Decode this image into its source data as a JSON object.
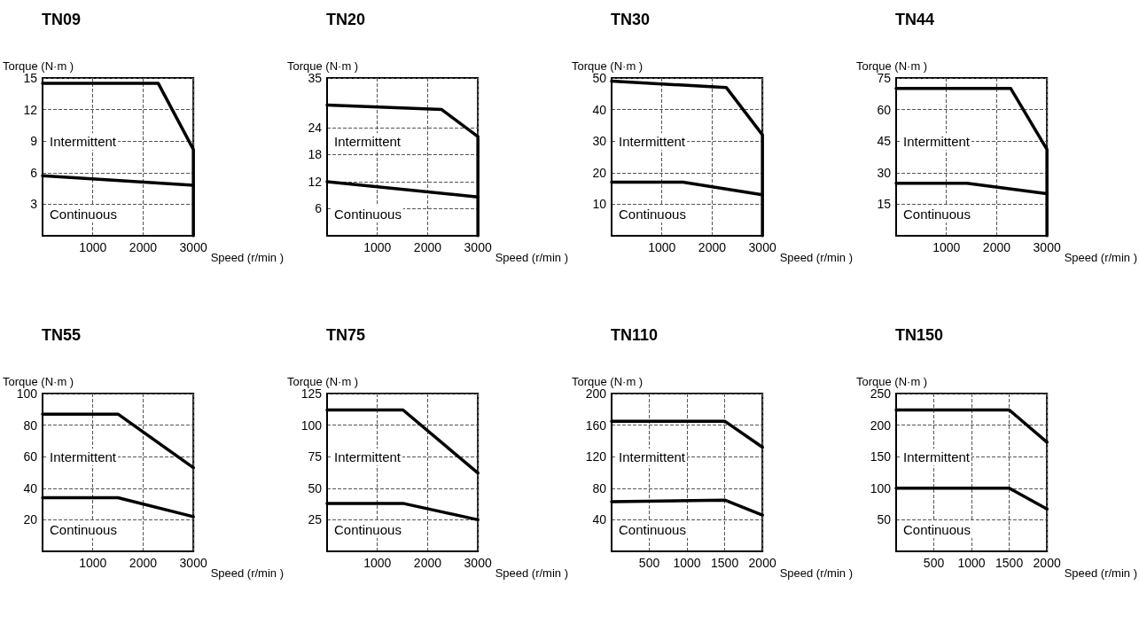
{
  "chart_data": [
    {
      "type": "line",
      "title": "TN09",
      "xlabel": "Speed (r/min )",
      "ylabel": "Torque (N·m )",
      "xlim": [
        0,
        3000
      ],
      "xticks": [
        1000,
        2000,
        3000
      ],
      "ylim": [
        0,
        15
      ],
      "yticks": [
        3,
        6,
        9,
        12,
        15
      ],
      "grid": true,
      "marker": "none",
      "line_style": "solid",
      "series": [
        {
          "color": "#000000",
          "x": [
            0,
            2300,
            3000,
            3000
          ],
          "values": [
            14.5,
            14.5,
            8.2,
            0
          ]
        },
        {
          "color": "#000000",
          "x": [
            0,
            3000
          ],
          "values": [
            5.7,
            4.8
          ]
        }
      ],
      "annotations": [
        "Intermittent",
        "Continuous"
      ]
    },
    {
      "type": "line",
      "title": "TN20",
      "xlabel": "Speed (r/min )",
      "ylabel": "Torque (N·m )",
      "xlim": [
        0,
        3000
      ],
      "xticks": [
        1000,
        2000,
        3000
      ],
      "ylim": [
        0,
        35
      ],
      "yticks": [
        6,
        12,
        18,
        24,
        35
      ],
      "grid": true,
      "marker": "none",
      "line_style": "solid",
      "series": [
        {
          "color": "#000000",
          "x": [
            0,
            2280,
            3000,
            3000
          ],
          "values": [
            29,
            28,
            22,
            0
          ]
        },
        {
          "color": "#000000",
          "x": [
            0,
            3000
          ],
          "values": [
            12,
            8.6
          ]
        }
      ],
      "annotations": [
        "Intermittent",
        "Continuous"
      ]
    },
    {
      "type": "line",
      "title": "TN30",
      "xlabel": "Speed (r/min )",
      "ylabel": "Torque (N·m )",
      "xlim": [
        0,
        3000
      ],
      "xticks": [
        1000,
        2000,
        3000
      ],
      "ylim": [
        0,
        50
      ],
      "yticks": [
        10,
        20,
        30,
        40,
        50
      ],
      "grid": true,
      "marker": "none",
      "line_style": "solid",
      "series": [
        {
          "color": "#000000",
          "x": [
            0,
            2280,
            3000,
            3000
          ],
          "values": [
            49,
            47,
            32,
            0
          ]
        },
        {
          "color": "#000000",
          "x": [
            0,
            1420,
            3000
          ],
          "values": [
            17,
            17,
            13
          ]
        }
      ],
      "annotations": [
        "Intermittent",
        "Continuous"
      ]
    },
    {
      "type": "line",
      "title": "TN44",
      "xlabel": "Speed (r/min )",
      "ylabel": "Torque (N·m )",
      "xlim": [
        0,
        3000
      ],
      "xticks": [
        1000,
        2000,
        3000
      ],
      "ylim": [
        0,
        75
      ],
      "yticks": [
        15,
        30,
        45,
        60,
        75
      ],
      "grid": true,
      "marker": "none",
      "line_style": "solid",
      "series": [
        {
          "color": "#000000",
          "x": [
            0,
            2280,
            3000,
            3000
          ],
          "values": [
            70,
            70,
            41,
            0
          ]
        },
        {
          "color": "#000000",
          "x": [
            0,
            1410,
            3000
          ],
          "values": [
            25,
            25,
            20
          ]
        }
      ],
      "annotations": [
        "Intermittent",
        "Continuous"
      ]
    },
    {
      "type": "line",
      "title": "TN55",
      "xlabel": "Speed (r/min )",
      "ylabel": "Torque (N·m )",
      "xlim": [
        0,
        3000
      ],
      "xticks": [
        1000,
        2000,
        3000
      ],
      "ylim": [
        0,
        100
      ],
      "yticks": [
        20,
        40,
        60,
        80,
        100
      ],
      "grid": true,
      "marker": "none",
      "line_style": "solid",
      "series": [
        {
          "color": "#000000",
          "x": [
            0,
            1500,
            3000
          ],
          "values": [
            87,
            87,
            53
          ]
        },
        {
          "color": "#000000",
          "x": [
            0,
            1500,
            3000
          ],
          "values": [
            34,
            34,
            22
          ]
        }
      ],
      "annotations": [
        "Intermittent",
        "Continuous"
      ]
    },
    {
      "type": "line",
      "title": "TN75",
      "xlabel": "Speed (r/min )",
      "ylabel": "Torque (N·m )",
      "xlim": [
        0,
        3000
      ],
      "xticks": [
        1000,
        2000,
        3000
      ],
      "ylim": [
        0,
        125
      ],
      "yticks": [
        25,
        50,
        75,
        100,
        125
      ],
      "grid": true,
      "marker": "none",
      "line_style": "solid",
      "series": [
        {
          "color": "#000000",
          "x": [
            0,
            1510,
            3000
          ],
          "values": [
            112,
            112,
            62
          ]
        },
        {
          "color": "#000000",
          "x": [
            0,
            1510,
            3000
          ],
          "values": [
            38,
            38,
            25
          ]
        }
      ],
      "annotations": [
        "Intermittent",
        "Continuous"
      ]
    },
    {
      "type": "line",
      "title": "TN110",
      "xlabel": "Speed (r/min )",
      "ylabel": "Torque (N·m )",
      "xlim": [
        0,
        2000
      ],
      "xticks": [
        500,
        1000,
        1500,
        2000
      ],
      "ylim": [
        0,
        200
      ],
      "yticks": [
        40,
        80,
        120,
        160,
        200
      ],
      "grid": true,
      "marker": "none",
      "line_style": "solid",
      "series": [
        {
          "color": "#000000",
          "x": [
            0,
            1500,
            2000
          ],
          "values": [
            165,
            165,
            132
          ]
        },
        {
          "color": "#000000",
          "x": [
            0,
            1500,
            2000
          ],
          "values": [
            63,
            65,
            46
          ]
        }
      ],
      "annotations": [
        "Intermittent",
        "Continuous"
      ]
    },
    {
      "type": "line",
      "title": "TN150",
      "xlabel": "Speed (r/min )",
      "ylabel": "Torque (N·m )",
      "xlim": [
        0,
        2000
      ],
      "xticks": [
        500,
        1000,
        1500,
        2000
      ],
      "ylim": [
        0,
        250
      ],
      "yticks": [
        50,
        100,
        150,
        200,
        250
      ],
      "grid": true,
      "marker": "none",
      "line_style": "solid",
      "series": [
        {
          "color": "#000000",
          "x": [
            0,
            1500,
            2000
          ],
          "values": [
            224,
            224,
            173
          ]
        },
        {
          "color": "#000000",
          "x": [
            0,
            1500,
            2000
          ],
          "values": [
            100,
            100,
            67
          ]
        }
      ],
      "annotations": [
        "Intermittent",
        "Continuous"
      ]
    }
  ]
}
